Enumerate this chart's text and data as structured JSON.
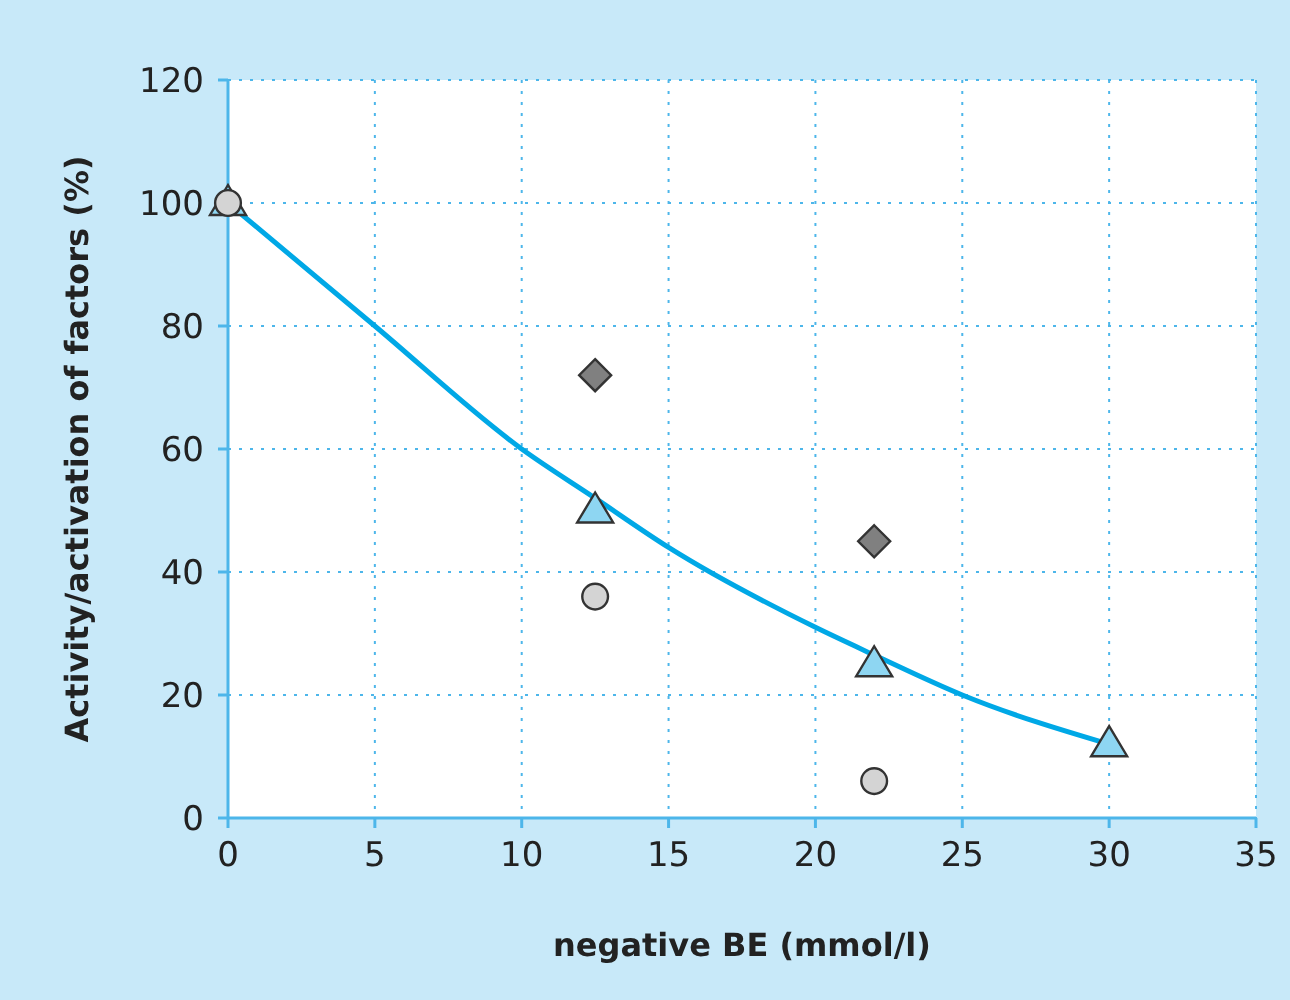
{
  "chart_data": {
    "type": "scatter",
    "xlabel": "negative BE (mmol/l)",
    "ylabel": "Activity/activation of factors (%)",
    "xlim": [
      0,
      35
    ],
    "xticks": [
      0,
      5,
      10,
      15,
      20,
      25,
      30,
      35
    ],
    "ylim": [
      0,
      120
    ],
    "yticks": [
      0,
      20,
      40,
      60,
      80,
      100,
      120
    ],
    "grid": true,
    "series": [
      {
        "type": "line",
        "color": "#00a8e6",
        "marker": "none",
        "line_style": "solid",
        "x": [
          0,
          5,
          10,
          12.5,
          15,
          20,
          22,
          25,
          30
        ],
        "values": [
          100,
          80,
          60,
          52,
          44,
          31,
          26.5,
          20,
          12
        ]
      },
      {
        "color": "#808080",
        "marker": "diamond",
        "x": [
          12.5,
          22
        ],
        "values": [
          72,
          45
        ]
      },
      {
        "color": "#8ed6f2",
        "marker": "triangle",
        "x": [
          0,
          12.5,
          22,
          30
        ],
        "values": [
          100,
          50,
          25,
          12
        ]
      },
      {
        "color": "#d4d4d4",
        "marker": "circle",
        "x": [
          0,
          12.5,
          22
        ],
        "values": [
          100,
          36,
          6
        ]
      }
    ]
  }
}
